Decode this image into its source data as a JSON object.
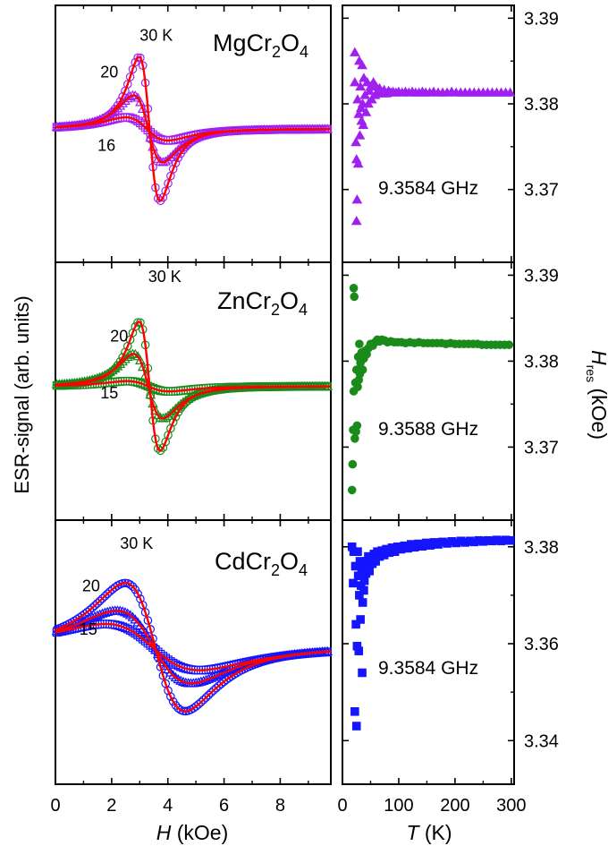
{
  "chart_data": [
    {
      "type": "line",
      "panel": "left",
      "compound": {
        "base": "MgCr",
        "sub1": "2",
        "mid": "O",
        "sub2": "4"
      },
      "series_labels": [
        {
          "text": "30 K",
          "x": 3.0,
          "y": 0.89
        },
        {
          "text": "20",
          "x": 1.6,
          "y": 0.52
        },
        {
          "text": "16",
          "x": 1.5,
          "y": -0.22
        }
      ],
      "series": [
        {
          "name": "30 K",
          "amp": 1.12,
          "center": 3.35,
          "width": 0.65,
          "marker": "circle"
        },
        {
          "name": "20",
          "amp": 0.52,
          "center": 3.3,
          "width": 0.9,
          "marker": "triangle"
        },
        {
          "name": "16",
          "amp": 0.18,
          "center": 3.25,
          "width": 1.3,
          "marker": "square"
        }
      ],
      "marker_color": "#a020f0",
      "fit_color": "#ff0000",
      "xlim": [
        0,
        9.8
      ],
      "ylim": [
        -1.35,
        1.25
      ]
    },
    {
      "type": "line",
      "panel": "left",
      "compound": {
        "base": "ZnCr",
        "sub1": "2",
        "mid": "O",
        "sub2": "4"
      },
      "series_labels": [
        {
          "text": "30 K",
          "x": 3.3,
          "y": 1.05
        },
        {
          "text": "20",
          "x": 1.95,
          "y": 0.45
        },
        {
          "text": "15",
          "x": 1.6,
          "y": -0.12
        }
      ],
      "series": [
        {
          "name": "30 K",
          "amp": 1.0,
          "center": 3.35,
          "width": 0.65,
          "marker": "circle"
        },
        {
          "name": "20",
          "amp": 0.5,
          "center": 3.3,
          "width": 0.9,
          "marker": "triangle"
        },
        {
          "name": "15",
          "amp": 0.08,
          "center": 3.3,
          "width": 1.3,
          "marker": "square"
        }
      ],
      "marker_color": "#1a8a1a",
      "fit_color": "#ff0000",
      "xlim": [
        0,
        9.8
      ],
      "ylim": [
        -1.35,
        1.25
      ]
    },
    {
      "type": "line",
      "panel": "left",
      "compound": {
        "base": "CdCr",
        "sub1": "2",
        "mid": "O",
        "sub2": "4"
      },
      "series_labels": [
        {
          "text": "30 K",
          "x": 2.3,
          "y": 0.97
        },
        {
          "text": "20",
          "x": 0.95,
          "y": 0.55
        },
        {
          "text": "15",
          "x": 0.85,
          "y": 0.12
        }
      ],
      "series": [
        {
          "name": "30 K",
          "amp": 0.97,
          "center": 3.55,
          "width": 1.85,
          "marker": "circle"
        },
        {
          "name": "20",
          "amp": 0.55,
          "center": 3.5,
          "width": 2.3,
          "marker": "triangle"
        },
        {
          "name": "15",
          "amp": 0.35,
          "center": 3.45,
          "width": 2.9,
          "marker": "square"
        }
      ],
      "marker_color": "#1515ff",
      "fit_color": "#ff0000",
      "xlim": [
        0,
        9.8
      ],
      "ylim": [
        -1.35,
        1.25
      ]
    },
    {
      "type": "scatter",
      "panel": "right",
      "annotation": "9.3584 GHz",
      "marker": "triangle",
      "marker_color": "#a020f0",
      "xlim": [
        0,
        305
      ],
      "ylim": [
        3.3615,
        3.3915
      ],
      "y_ticks": [
        "3.37",
        "3.38",
        "3.39"
      ],
      "y_tick_values": [
        3.37,
        3.38,
        3.39
      ],
      "points": [
        [
          22,
          3.386
        ],
        [
          22,
          3.3825
        ],
        [
          24,
          3.3755
        ],
        [
          25,
          3.3663
        ],
        [
          25,
          3.3735
        ],
        [
          26,
          3.3688
        ],
        [
          27,
          3.3805
        ],
        [
          28,
          3.373
        ],
        [
          29,
          3.3788
        ],
        [
          30,
          3.385
        ],
        [
          31,
          3.3763
        ],
        [
          32,
          3.382
        ],
        [
          33,
          3.3795
        ],
        [
          34,
          3.378
        ],
        [
          35,
          3.3845
        ],
        [
          36,
          3.38
        ],
        [
          37,
          3.3775
        ],
        [
          38,
          3.383
        ],
        [
          40,
          3.381
        ],
        [
          42,
          3.379
        ],
        [
          44,
          3.3825
        ],
        [
          46,
          3.38
        ],
        [
          48,
          3.3815
        ],
        [
          50,
          3.382
        ],
        [
          52,
          3.3805
        ],
        [
          55,
          3.3825
        ],
        [
          58,
          3.381
        ],
        [
          60,
          3.382
        ],
        [
          63,
          3.3812
        ],
        [
          66,
          3.3818
        ],
        [
          70,
          3.3812
        ],
        [
          74,
          3.3816
        ],
        [
          78,
          3.3812
        ],
        [
          82,
          3.3815
        ],
        [
          86,
          3.3813
        ],
        [
          90,
          3.3814
        ],
        [
          95,
          3.3813
        ],
        [
          100,
          3.3814
        ],
        [
          106,
          3.3813
        ],
        [
          112,
          3.3814
        ],
        [
          118,
          3.3813
        ],
        [
          124,
          3.3814
        ],
        [
          130,
          3.3813
        ],
        [
          136,
          3.3813
        ],
        [
          142,
          3.3814
        ],
        [
          148,
          3.3813
        ],
        [
          155,
          3.3813
        ],
        [
          162,
          3.3814
        ],
        [
          170,
          3.3813
        ],
        [
          178,
          3.3813
        ],
        [
          186,
          3.3813
        ],
        [
          194,
          3.3814
        ],
        [
          202,
          3.3813
        ],
        [
          210,
          3.3813
        ],
        [
          218,
          3.3813
        ],
        [
          226,
          3.3813
        ],
        [
          234,
          3.3813
        ],
        [
          242,
          3.3813
        ],
        [
          250,
          3.3813
        ],
        [
          258,
          3.3813
        ],
        [
          266,
          3.3813
        ],
        [
          274,
          3.3813
        ],
        [
          282,
          3.3813
        ],
        [
          290,
          3.3813
        ],
        [
          298,
          3.3813
        ]
      ]
    },
    {
      "type": "scatter",
      "panel": "right",
      "annotation": "9.3588 GHz",
      "marker": "circle",
      "marker_color": "#1a8a1a",
      "xlim": [
        0,
        305
      ],
      "ylim": [
        3.3615,
        3.3915
      ],
      "y_ticks": [
        "3.37",
        "3.38",
        "3.39"
      ],
      "y_tick_values": [
        3.37,
        3.38,
        3.39
      ],
      "points": [
        [
          17,
          3.365
        ],
        [
          18,
          3.368
        ],
        [
          19,
          3.372
        ],
        [
          20,
          3.3765
        ],
        [
          20,
          3.3885
        ],
        [
          21,
          3.3875
        ],
        [
          22,
          3.371
        ],
        [
          23,
          3.3775
        ],
        [
          24,
          3.3718
        ],
        [
          25,
          3.379
        ],
        [
          26,
          3.3725
        ],
        [
          27,
          3.377
        ],
        [
          28,
          3.3805
        ],
        [
          29,
          3.3778
        ],
        [
          30,
          3.382
        ],
        [
          31,
          3.3785
        ],
        [
          32,
          3.3798
        ],
        [
          34,
          3.381
        ],
        [
          36,
          3.379
        ],
        [
          38,
          3.3803
        ],
        [
          40,
          3.3812
        ],
        [
          43,
          3.3808
        ],
        [
          46,
          3.3815
        ],
        [
          50,
          3.382
        ],
        [
          54,
          3.3818
        ],
        [
          58,
          3.3822
        ],
        [
          62,
          3.3825
        ],
        [
          66,
          3.3823
        ],
        [
          70,
          3.3825
        ],
        [
          75,
          3.3824
        ],
        [
          80,
          3.3822
        ],
        [
          86,
          3.3823
        ],
        [
          92,
          3.3822
        ],
        [
          98,
          3.3822
        ],
        [
          105,
          3.3822
        ],
        [
          112,
          3.3821
        ],
        [
          120,
          3.3822
        ],
        [
          128,
          3.3821
        ],
        [
          136,
          3.3822
        ],
        [
          144,
          3.3821
        ],
        [
          152,
          3.3821
        ],
        [
          160,
          3.3821
        ],
        [
          168,
          3.3821
        ],
        [
          176,
          3.3821
        ],
        [
          184,
          3.382
        ],
        [
          192,
          3.3821
        ],
        [
          200,
          3.382
        ],
        [
          208,
          3.382
        ],
        [
          216,
          3.382
        ],
        [
          224,
          3.382
        ],
        [
          232,
          3.382
        ],
        [
          240,
          3.382
        ],
        [
          248,
          3.3819
        ],
        [
          256,
          3.3819
        ],
        [
          264,
          3.3819
        ],
        [
          272,
          3.3819
        ],
        [
          280,
          3.3819
        ],
        [
          288,
          3.3819
        ],
        [
          296,
          3.3819
        ]
      ]
    },
    {
      "type": "scatter",
      "panel": "right",
      "annotation": "9.3584 GHz",
      "marker": "square",
      "marker_color": "#1515ff",
      "xlim": [
        0,
        305
      ],
      "ylim": [
        3.331,
        3.3855
      ],
      "y_ticks": [
        "3.34",
        "3.36",
        "3.38"
      ],
      "y_tick_values": [
        3.34,
        3.36,
        3.38
      ],
      "points": [
        [
          17,
          3.38
        ],
        [
          19,
          3.3725
        ],
        [
          20,
          3.379
        ],
        [
          22,
          3.346
        ],
        [
          23,
          3.376
        ],
        [
          24,
          3.364
        ],
        [
          25,
          3.343
        ],
        [
          26,
          3.3595
        ],
        [
          27,
          3.379
        ],
        [
          28,
          3.374
        ],
        [
          29,
          3.3585
        ],
        [
          30,
          3.37
        ],
        [
          31,
          3.377
        ],
        [
          32,
          3.365
        ],
        [
          33,
          3.372
        ],
        [
          34,
          3.3755
        ],
        [
          35,
          3.354
        ],
        [
          36,
          3.3685
        ],
        [
          37,
          3.376
        ],
        [
          38,
          3.371
        ],
        [
          39,
          3.373
        ],
        [
          40,
          3.377
        ],
        [
          42,
          3.3745
        ],
        [
          44,
          3.3765
        ],
        [
          46,
          3.378
        ],
        [
          48,
          3.375
        ],
        [
          50,
          3.3775
        ],
        [
          53,
          3.3765
        ],
        [
          56,
          3.3785
        ],
        [
          59,
          3.377
        ],
        [
          62,
          3.379
        ],
        [
          66,
          3.378
        ],
        [
          70,
          3.3792
        ],
        [
          74,
          3.3783
        ],
        [
          78,
          3.3795
        ],
        [
          83,
          3.3788
        ],
        [
          88,
          3.3798
        ],
        [
          93,
          3.379
        ],
        [
          98,
          3.38
        ],
        [
          104,
          3.3795
        ],
        [
          110,
          3.3802
        ],
        [
          116,
          3.3797
        ],
        [
          122,
          3.3805
        ],
        [
          128,
          3.3799
        ],
        [
          135,
          3.3806
        ],
        [
          142,
          3.3801
        ],
        [
          149,
          3.3808
        ],
        [
          156,
          3.3803
        ],
        [
          163,
          3.3809
        ],
        [
          170,
          3.3805
        ],
        [
          178,
          3.381
        ],
        [
          186,
          3.3807
        ],
        [
          194,
          3.3811
        ],
        [
          202,
          3.3808
        ],
        [
          210,
          3.3812
        ],
        [
          218,
          3.3809
        ],
        [
          226,
          3.3812
        ],
        [
          234,
          3.381
        ],
        [
          242,
          3.3813
        ],
        [
          250,
          3.3811
        ],
        [
          258,
          3.3813
        ],
        [
          266,
          3.3812
        ],
        [
          274,
          3.3814
        ],
        [
          282,
          3.3812
        ],
        [
          290,
          3.3814
        ],
        [
          298,
          3.3813
        ]
      ]
    }
  ],
  "axes": {
    "left_xlabel_italic": "H",
    "left_xlabel_rest": " (kOe)",
    "right_xlabel_italic": "T",
    "right_xlabel_rest": " (K)",
    "left_ylabel": "ESR-signal (arb. units)",
    "right_ylabel_italic": "H",
    "right_ylabel_sub": "res",
    "right_ylabel_rest": " (kOe)",
    "left_x_ticks": [
      "0",
      "2",
      "4",
      "6",
      "8"
    ],
    "left_x_tick_values": [
      0,
      2,
      4,
      6,
      8
    ],
    "right_x_ticks": [
      "0",
      "100",
      "200",
      "300"
    ],
    "right_x_tick_values": [
      0,
      100,
      200,
      300
    ]
  }
}
